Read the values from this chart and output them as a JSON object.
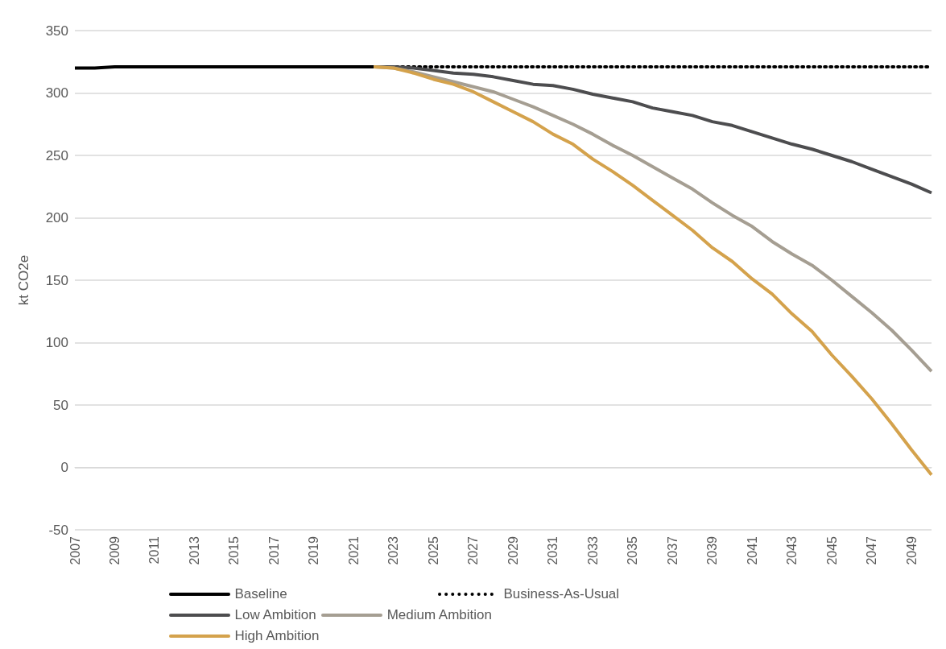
{
  "chart_data": {
    "type": "line",
    "ylabel": "kt CO2e",
    "categories": [
      "2007",
      null,
      "2009",
      null,
      "2011",
      null,
      "2013",
      null,
      "2015",
      null,
      "2017",
      null,
      "2019",
      null,
      "2021",
      null,
      "2023",
      null,
      "2025",
      null,
      "2027",
      null,
      "2029",
      null,
      "2031",
      null,
      "2033",
      null,
      "2035",
      null,
      "2037",
      null,
      "2039",
      null,
      "2041",
      null,
      "2043",
      null,
      "2045",
      null,
      "2047",
      null,
      "2049",
      null
    ],
    "series": [
      {
        "name": "Baseline",
        "color": "#000000",
        "line_style": "solid",
        "values": [
          320,
          320,
          321,
          321,
          321,
          321,
          321,
          321,
          321,
          321,
          321,
          321,
          321,
          321,
          321,
          321,
          null,
          null,
          null,
          null,
          null,
          null,
          null,
          null,
          null,
          null,
          null,
          null,
          null,
          null,
          null,
          null,
          null,
          null,
          null,
          null,
          null,
          null,
          null,
          null,
          null,
          null,
          null,
          null
        ]
      },
      {
        "name": "Business-As-Usual",
        "color": "#000000",
        "line_style": "dotted",
        "values": [
          null,
          null,
          null,
          null,
          null,
          null,
          null,
          null,
          null,
          null,
          null,
          null,
          null,
          null,
          null,
          321,
          321,
          321,
          321,
          321,
          321,
          321,
          321,
          321,
          321,
          321,
          321,
          321,
          321,
          321,
          321,
          321,
          321,
          321,
          321,
          321,
          321,
          321,
          321,
          321,
          321,
          321,
          321,
          321
        ]
      },
      {
        "name": "Low Ambition",
        "color": "#4d4d4f",
        "line_style": "solid",
        "values": [
          null,
          null,
          null,
          null,
          null,
          null,
          null,
          null,
          null,
          null,
          null,
          null,
          null,
          null,
          null,
          321,
          321,
          320,
          318,
          316,
          315,
          313,
          310,
          307,
          306,
          303,
          299,
          296,
          293,
          288,
          285,
          282,
          277,
          274,
          269,
          264,
          259,
          255,
          250,
          245,
          239,
          233,
          227,
          220
        ]
      },
      {
        "name": "Medium Ambition",
        "color": "#a59e92",
        "line_style": "solid",
        "values": [
          null,
          null,
          null,
          null,
          null,
          null,
          null,
          null,
          null,
          null,
          null,
          null,
          null,
          null,
          null,
          321,
          320,
          317,
          313,
          309,
          305,
          301,
          295,
          289,
          282,
          275,
          267,
          258,
          250,
          241,
          232,
          223,
          212,
          202,
          193,
          181,
          171,
          162,
          150,
          137,
          124,
          110,
          94,
          77
        ]
      },
      {
        "name": "High Ambition",
        "color": "#d4a24c",
        "line_style": "solid",
        "values": [
          null,
          null,
          null,
          null,
          null,
          null,
          null,
          null,
          null,
          null,
          null,
          null,
          null,
          null,
          null,
          321,
          320,
          316,
          311,
          307,
          301,
          293,
          285,
          277,
          267,
          259,
          247,
          237,
          226,
          214,
          202,
          190,
          176,
          165,
          151,
          139,
          123,
          109,
          90,
          73,
          55,
          35,
          14,
          -6
        ]
      }
    ],
    "ylim": [
      -50,
      350
    ],
    "yticks": [
      -50,
      0,
      50,
      100,
      150,
      200,
      250,
      300,
      350
    ],
    "grid": "y",
    "legend": "bottom",
    "marker": "none"
  }
}
